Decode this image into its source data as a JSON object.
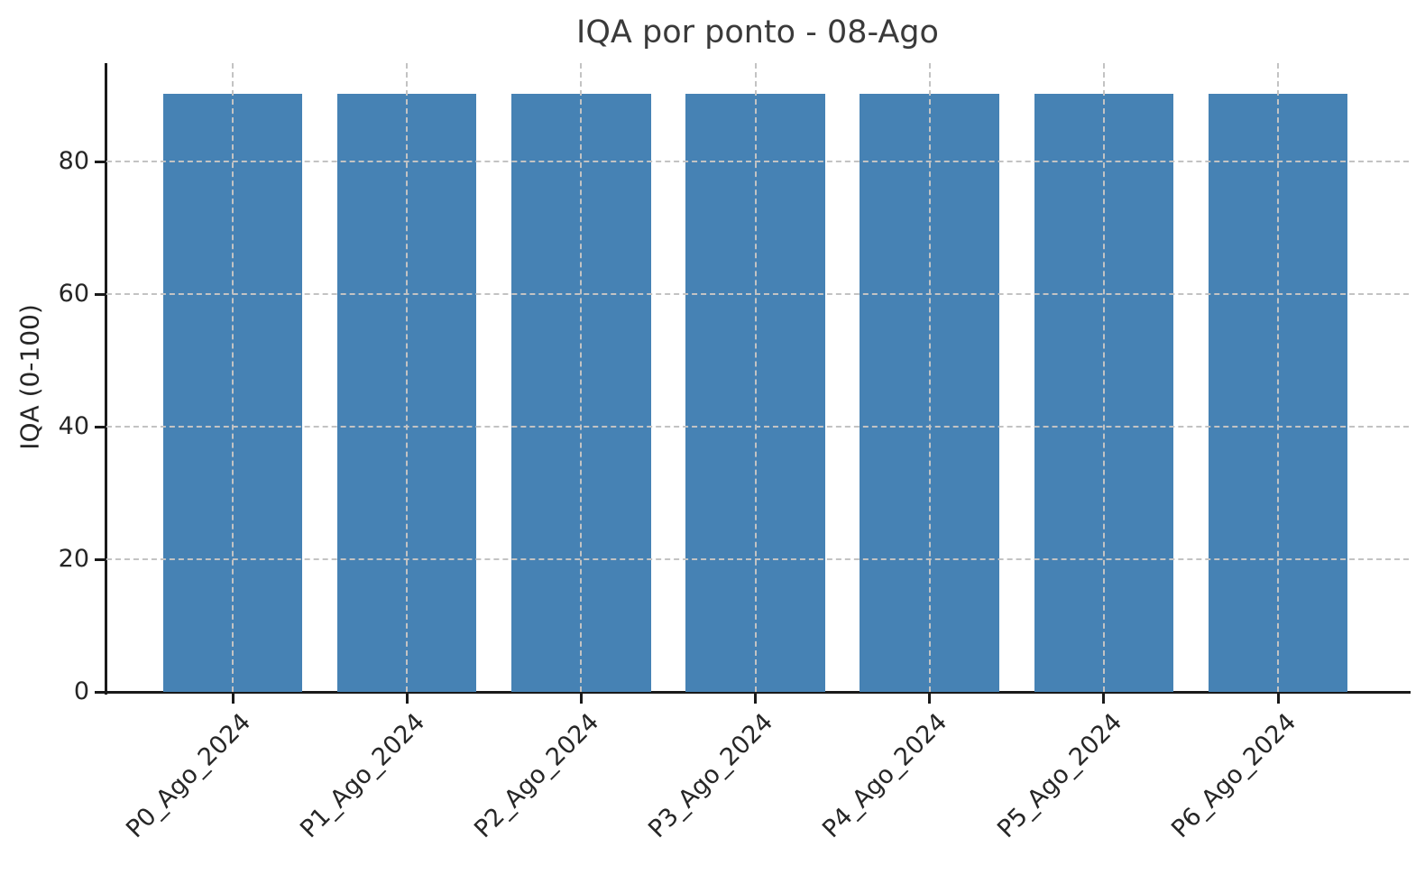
{
  "chart_data": {
    "type": "bar",
    "title": "IQA por ponto - 08-Ago",
    "xlabel": "",
    "ylabel": "IQA (0-100)",
    "categories": [
      "P0_Ago_2024",
      "P1_Ago_2024",
      "P2_Ago_2024",
      "P3_Ago_2024",
      "P4_Ago_2024",
      "P5_Ago_2024",
      "P6_Ago_2024"
    ],
    "values": [
      90.3,
      90.3,
      90.3,
      90.3,
      90.3,
      90.3,
      90.3
    ],
    "yticks": [
      0,
      20,
      40,
      60,
      80
    ],
    "ylim": [
      0,
      94.9
    ],
    "xlim": [
      -0.725,
      6.75
    ],
    "bar_width": 0.8,
    "grid": {
      "show": true,
      "axis": "both",
      "style": "dashed"
    },
    "x_tick_rotation_deg": 45,
    "colors": {
      "bar": "#4682b4",
      "grid": "#c3c3c3",
      "spine": "#1a1a1a",
      "tick_text": "#262626",
      "title_text": "#3a3a3a",
      "background": "#ffffff"
    }
  }
}
